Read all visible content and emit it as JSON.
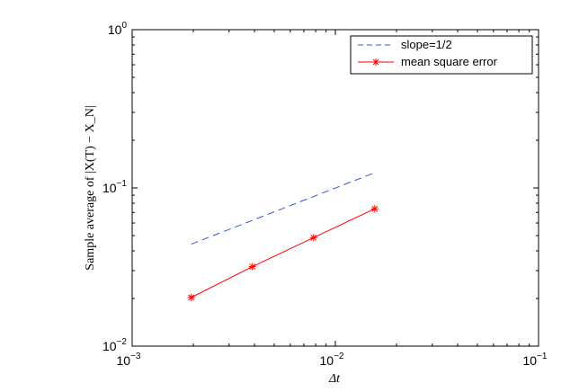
{
  "chart_data": {
    "type": "line",
    "xscale": "log",
    "yscale": "log",
    "xlim": [
      0.001,
      0.1
    ],
    "ylim": [
      0.01,
      1
    ],
    "xlabel": "Δt",
    "ylabel": "Sample average of |X(T) − X_N|",
    "x_ticks": [
      {
        "base": "10",
        "exp": "−3",
        "value": 0.001
      },
      {
        "base": "10",
        "exp": "−2",
        "value": 0.01
      },
      {
        "base": "10",
        "exp": "−1",
        "value": 0.1
      }
    ],
    "y_ticks": [
      {
        "base": "10",
        "exp": "−2",
        "value": 0.01
      },
      {
        "base": "10",
        "exp": "−1",
        "value": 0.1
      },
      {
        "base": "10",
        "exp": "0",
        "value": 1
      }
    ],
    "series": [
      {
        "name": "slope=1/2",
        "style": "dashed",
        "color": "#3355dd",
        "marker": "none",
        "x": [
          0.001953125,
          0.015625
        ],
        "y": [
          0.0441,
          0.1248
        ]
      },
      {
        "name": "mean square error",
        "style": "solid",
        "color": "#ff0000",
        "marker": "asterisk",
        "x": [
          0.001953125,
          0.00390625,
          0.0078125,
          0.015625
        ],
        "y": [
          0.0203,
          0.0318,
          0.0485,
          0.0738
        ]
      }
    ],
    "legend_position": "top-right",
    "grid": false
  }
}
